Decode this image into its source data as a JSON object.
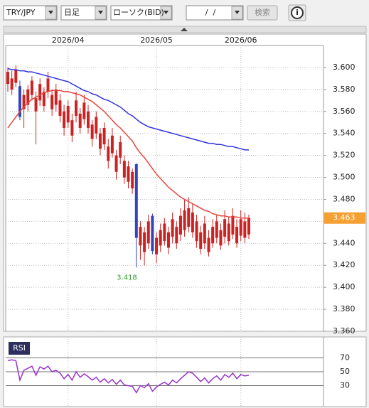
{
  "toolbar": {
    "symbol": "TRY/JPY",
    "period": "日足",
    "chart_type": "ローソク(BID)",
    "date": "/  /",
    "search": "検索",
    "info": "i"
  },
  "chart_data": [
    {
      "type": "candlestick",
      "categories": [
        null,
        null,
        null,
        null,
        null,
        null,
        null,
        null,
        null,
        null,
        null,
        null,
        null,
        null,
        null,
        "2026/04",
        null,
        null,
        null,
        null,
        null,
        null,
        null,
        null,
        null,
        null,
        null,
        null,
        null,
        null,
        null,
        null,
        null,
        null,
        null,
        null,
        null,
        "2026/05",
        null,
        null,
        null,
        null,
        null,
        null,
        null,
        null,
        null,
        null,
        null,
        null,
        null,
        null,
        null,
        null,
        null,
        null,
        null,
        null,
        "2026/06",
        null,
        null
      ],
      "open": [
        3.585,
        3.58,
        3.586,
        3.583,
        3.562,
        3.566,
        3.575,
        3.56,
        3.57,
        3.565,
        3.578,
        3.562,
        3.566,
        3.556,
        3.545,
        3.55,
        3.538,
        3.556,
        3.545,
        3.553,
        3.545,
        3.535,
        3.54,
        3.526,
        3.53,
        3.515,
        3.522,
        3.505,
        3.518,
        3.5,
        3.496,
        3.49,
        3.512,
        3.438,
        3.432,
        3.44,
        3.465,
        3.43,
        3.438,
        3.442,
        3.436,
        3.446,
        3.44,
        3.448,
        3.452,
        3.455,
        3.45,
        3.442,
        3.435,
        3.44,
        3.432,
        3.44,
        3.445,
        3.438,
        3.446,
        3.442,
        3.448,
        3.44,
        3.447,
        3.445,
        3.448
      ],
      "high": [
        3.6,
        3.597,
        3.602,
        3.588,
        3.58,
        3.584,
        3.592,
        3.578,
        3.59,
        3.582,
        3.596,
        3.58,
        3.585,
        3.576,
        3.566,
        3.57,
        3.558,
        3.578,
        3.563,
        3.575,
        3.566,
        3.552,
        3.56,
        3.545,
        3.55,
        3.535,
        3.545,
        3.525,
        3.538,
        3.52,
        3.515,
        3.508,
        3.513,
        3.46,
        3.455,
        3.466,
        3.467,
        3.45,
        3.458,
        3.463,
        3.455,
        3.468,
        3.46,
        3.472,
        3.48,
        3.482,
        3.476,
        3.466,
        3.456,
        3.465,
        3.452,
        3.462,
        3.466,
        3.458,
        3.47,
        3.464,
        3.472,
        3.462,
        3.47,
        3.468,
        3.466
      ],
      "low": [
        3.578,
        3.575,
        3.582,
        3.552,
        3.545,
        3.56,
        3.57,
        3.53,
        3.565,
        3.56,
        3.572,
        3.556,
        3.56,
        3.55,
        3.538,
        3.545,
        3.532,
        3.55,
        3.54,
        3.548,
        3.54,
        3.528,
        3.535,
        3.52,
        3.525,
        3.508,
        3.518,
        3.498,
        3.512,
        3.494,
        3.49,
        3.485,
        3.418,
        3.425,
        3.42,
        3.435,
        3.43,
        3.422,
        3.432,
        3.438,
        3.43,
        3.44,
        3.435,
        3.442,
        3.446,
        3.45,
        3.445,
        3.436,
        3.43,
        3.435,
        3.428,
        3.436,
        3.44,
        3.434,
        3.44,
        3.438,
        3.444,
        3.436,
        3.442,
        3.44,
        3.444
      ],
      "close": [
        3.596,
        3.59,
        3.598,
        3.555,
        3.575,
        3.58,
        3.588,
        3.572,
        3.585,
        3.578,
        3.59,
        3.575,
        3.58,
        3.57,
        3.56,
        3.565,
        3.552,
        3.57,
        3.558,
        3.568,
        3.56,
        3.548,
        3.555,
        3.54,
        3.545,
        3.528,
        3.538,
        3.52,
        3.532,
        3.515,
        3.51,
        3.505,
        3.445,
        3.455,
        3.45,
        3.46,
        3.433,
        3.445,
        3.452,
        3.458,
        3.45,
        3.462,
        3.455,
        3.465,
        3.47,
        3.472,
        3.468,
        3.46,
        3.45,
        3.458,
        3.445,
        3.455,
        3.46,
        3.452,
        3.462,
        3.458,
        3.465,
        3.455,
        3.462,
        3.46,
        3.463
      ],
      "up_color": "#cc2222",
      "down_color": "#3344bb",
      "moving_averages": [
        {
          "color": "#e8453c",
          "values": [
            3.545,
            3.55,
            3.555,
            3.56,
            3.564,
            3.568,
            3.571,
            3.573,
            3.575,
            3.577,
            3.578,
            3.579,
            3.579,
            3.579,
            3.578,
            3.578,
            3.577,
            3.576,
            3.575,
            3.573,
            3.571,
            3.569,
            3.566,
            3.563,
            3.56,
            3.556,
            3.552,
            3.548,
            3.545,
            3.541,
            3.537,
            3.533,
            3.527,
            3.522,
            3.518,
            3.513,
            3.508,
            3.503,
            3.499,
            3.495,
            3.491,
            3.488,
            3.485,
            3.482,
            3.48,
            3.478,
            3.476,
            3.474,
            3.472,
            3.47,
            3.469,
            3.467,
            3.466,
            3.465,
            3.465,
            3.464,
            3.464,
            3.464,
            3.463,
            3.463,
            3.463
          ]
        },
        {
          "color": "#3333dd",
          "values": [
            3.599,
            3.598,
            3.598,
            3.597,
            3.597,
            3.596,
            3.596,
            3.595,
            3.594,
            3.593,
            3.592,
            3.591,
            3.59,
            3.589,
            3.588,
            3.587,
            3.585,
            3.583,
            3.581,
            3.579,
            3.578,
            3.576,
            3.575,
            3.573,
            3.571,
            3.57,
            3.568,
            3.566,
            3.564,
            3.561,
            3.558,
            3.556,
            3.553,
            3.55,
            3.548,
            3.546,
            3.545,
            3.544,
            3.543,
            3.542,
            3.541,
            3.54,
            3.539,
            3.538,
            3.537,
            3.536,
            3.535,
            3.534,
            3.533,
            3.532,
            3.531,
            3.531,
            3.53,
            3.53,
            3.529,
            3.528,
            3.528,
            3.527,
            3.526,
            3.525,
            3.525
          ]
        }
      ],
      "last_price": 3.463,
      "low_annotation": 3.418,
      "ylim": [
        3.36,
        3.62
      ],
      "yticks": [
        {
          "value": 3.6,
          "label": "3.600"
        },
        {
          "value": 3.58,
          "label": "3.580"
        },
        {
          "value": 3.56,
          "label": "3.560"
        },
        {
          "value": 3.54,
          "label": "3.540"
        },
        {
          "value": 3.52,
          "label": "3.520"
        },
        {
          "value": 3.5,
          "label": "3.500"
        },
        {
          "value": 3.48,
          "label": "3.480"
        },
        {
          "value": 3.46,
          "label": "3.460"
        },
        {
          "value": 3.44,
          "label": "3.440"
        },
        {
          "value": 3.42,
          "label": "3.420"
        },
        {
          "value": 3.4,
          "label": "3.400"
        },
        {
          "value": 3.38,
          "label": "3.380"
        },
        {
          "value": 3.36,
          "label": "3.360"
        }
      ],
      "grid": true
    },
    {
      "type": "line",
      "title": "RSI",
      "color": "#9933cc",
      "values": [
        66,
        67,
        66,
        38,
        52,
        55,
        58,
        45,
        57,
        54,
        58,
        50,
        52,
        48,
        40,
        46,
        38,
        50,
        42,
        47,
        43,
        38,
        42,
        35,
        40,
        34,
        39,
        32,
        38,
        31,
        30,
        29,
        20,
        30,
        27,
        33,
        22,
        28,
        32,
        35,
        31,
        38,
        34,
        40,
        45,
        50,
        48,
        42,
        36,
        41,
        34,
        40,
        44,
        38,
        46,
        42,
        48,
        40,
        46,
        44,
        45
      ],
      "ylim": [
        0,
        100
      ],
      "yticks": [
        70,
        50,
        30
      ]
    }
  ]
}
